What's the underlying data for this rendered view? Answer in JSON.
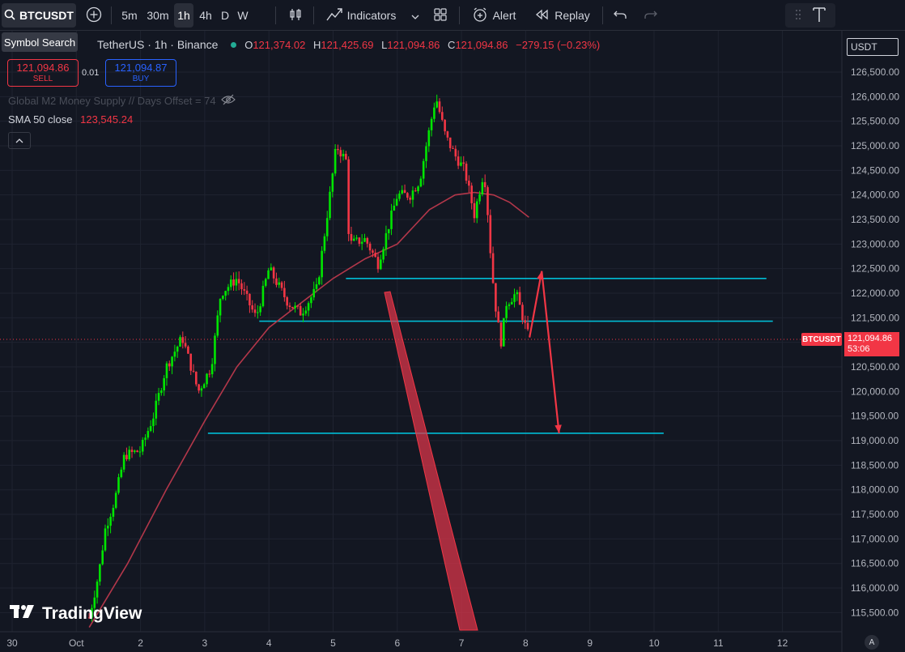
{
  "toolbar": {
    "symbol": "BTCUSDT",
    "intervals": [
      "5m",
      "30m",
      "1h",
      "4h",
      "D",
      "W"
    ],
    "active_interval": "1h",
    "indicators_label": "Indicators",
    "alert_label": "Alert",
    "replay_label": "Replay"
  },
  "tooltip": "Symbol Search",
  "legend": {
    "title": "TetherUS · 1h · Binance",
    "o_label": "O",
    "o": "121,374.02",
    "h_label": "H",
    "h": "121,425.69",
    "l_label": "L",
    "l": "121,094.86",
    "c_label": "C",
    "c": "121,094.86",
    "change": "−279.15 (−0.23%)"
  },
  "trade": {
    "sell_price": "121,094.86",
    "sell_label": "SELL",
    "spread": "0.01",
    "buy_price": "121,094.87",
    "buy_label": "BUY"
  },
  "indicators": {
    "m2": "Global M2 Money Supply // Days Offset = 74",
    "sma_label": "SMA 50 close",
    "sma_value": "123,545.24"
  },
  "currency": "USDT",
  "price_tag": {
    "symbol": "BTCUSDT",
    "price": "121,094.86",
    "countdown": "53:06"
  },
  "logo_text": "TradingView",
  "auto_label": "A",
  "colors": {
    "background": "#131722",
    "up": "#22ab94",
    "up_bright": "#00e600",
    "down": "#f23645",
    "sma": "#b2374a",
    "hline": "#00bcd4",
    "grid": "#2a2e39"
  },
  "chart_data": {
    "type": "candlestick",
    "interval": "1h",
    "x_tick_labels": [
      "30",
      "Oct",
      "2",
      "3",
      "4",
      "5",
      "6",
      "7",
      "8",
      "9",
      "10",
      "11",
      "12"
    ],
    "y_tick_labels": [
      "115,500.00",
      "116,000.00",
      "116,500.00",
      "117,000.00",
      "117,500.00",
      "118,000.00",
      "118,500.00",
      "119,000.00",
      "119,500.00",
      "120,000.00",
      "120,500.00",
      "121,000.00",
      "121,500.00",
      "122,000.00",
      "122,500.00",
      "123,000.00",
      "123,500.00",
      "124,000.00",
      "124,500.00",
      "125,000.00",
      "125,500.00",
      "126,000.00",
      "126,500.00"
    ],
    "ylim": [
      115300,
      126800
    ],
    "x_range_days": [
      "Sep 30",
      "Oct 12"
    ],
    "price_path_days": [
      [
        1.2,
        115400
      ],
      [
        1.35,
        116300
      ],
      [
        1.45,
        117200
      ],
      [
        1.6,
        117800
      ],
      [
        1.75,
        118700
      ],
      [
        2.0,
        118800
      ],
      [
        2.2,
        119500
      ],
      [
        2.4,
        120500
      ],
      [
        2.65,
        121100
      ],
      [
        2.9,
        120000
      ],
      [
        3.1,
        120500
      ],
      [
        3.25,
        122000
      ],
      [
        3.5,
        122300
      ],
      [
        3.8,
        121500
      ],
      [
        4.0,
        122500
      ],
      [
        4.3,
        121800
      ],
      [
        4.5,
        121600
      ],
      [
        4.75,
        122100
      ],
      [
        4.95,
        124000
      ],
      [
        5.05,
        125000
      ],
      [
        5.2,
        124700
      ],
      [
        5.25,
        123000
      ],
      [
        5.5,
        123100
      ],
      [
        5.7,
        122600
      ],
      [
        5.85,
        123300
      ],
      [
        6.0,
        124000
      ],
      [
        6.2,
        124000
      ],
      [
        6.35,
        124300
      ],
      [
        6.45,
        125000
      ],
      [
        6.6,
        126000
      ],
      [
        6.75,
        125200
      ],
      [
        6.9,
        124800
      ],
      [
        7.05,
        124500
      ],
      [
        7.2,
        123600
      ],
      [
        7.35,
        124500
      ],
      [
        7.4,
        123800
      ],
      [
        7.47,
        122500
      ],
      [
        7.55,
        121500
      ],
      [
        7.62,
        121000
      ],
      [
        7.7,
        121800
      ],
      [
        7.85,
        122000
      ],
      [
        8.0,
        121300
      ],
      [
        8.05,
        121095
      ]
    ],
    "sma50": [
      [
        1.2,
        115200
      ],
      [
        1.8,
        116500
      ],
      [
        2.4,
        118000
      ],
      [
        3.0,
        119400
      ],
      [
        3.5,
        120500
      ],
      [
        4.0,
        121300
      ],
      [
        4.5,
        121800
      ],
      [
        5.0,
        122300
      ],
      [
        5.5,
        122700
      ],
      [
        6.0,
        123000
      ],
      [
        6.5,
        123700
      ],
      [
        6.9,
        124000
      ],
      [
        7.2,
        124050
      ],
      [
        7.5,
        124000
      ],
      [
        7.75,
        123850
      ],
      [
        8.05,
        123545
      ]
    ],
    "horizontal_lines": [
      {
        "price": 122300,
        "from_day": 5.2,
        "to_day": 11.75
      },
      {
        "price": 121430,
        "from_day": 3.85,
        "to_day": 11.85
      },
      {
        "price": 119150,
        "from_day": 3.05,
        "to_day": 10.15
      }
    ],
    "arrows": [
      {
        "from": [
          8.06,
          121100
        ],
        "to": [
          8.25,
          122450
        ]
      },
      {
        "from": [
          8.25,
          122450
        ],
        "to": [
          8.52,
          119150
        ]
      }
    ],
    "last_price": 121094.86
  }
}
